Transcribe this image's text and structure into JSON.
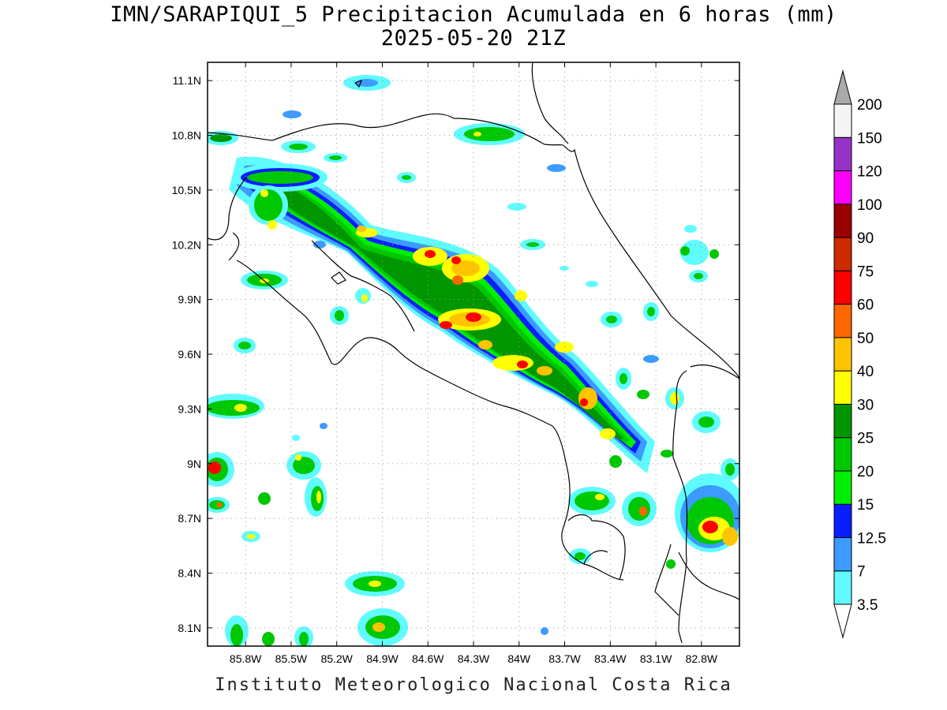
{
  "title_line1": "IMN/SARAPIQUI_5 Precipitacion Acumulada en 6 horas (mm)",
  "title_line2": "2025-05-20 21Z",
  "footer": "Instituto Meteorologico Nacional Costa Rica",
  "map": {
    "lon_range": [
      -86.05,
      -82.55
    ],
    "lat_range": [
      8.0,
      11.2
    ],
    "lon_ticks": [
      "85.8W",
      "85.5W",
      "85.2W",
      "84.9W",
      "84.6W",
      "84.3W",
      "84W",
      "83.7W",
      "83.4W",
      "83.1W",
      "82.8W"
    ],
    "lat_ticks": [
      "11.1N",
      "10.8N",
      "10.5N",
      "10.2N",
      "9.9N",
      "9.6N",
      "9.3N",
      "9N",
      "8.7N",
      "8.4N",
      "8.1N"
    ],
    "grid": "dotted"
  },
  "colorbar": {
    "levels": [
      "3.5",
      "7",
      "12.5",
      "15",
      "20",
      "25",
      "30",
      "40",
      "50",
      "60",
      "75",
      "90",
      "100",
      "120",
      "150",
      "200"
    ],
    "colors": [
      "#5ffbff",
      "#3b9bff",
      "#0a1eff",
      "#00ee00",
      "#00c800",
      "#009600",
      "#ffff00",
      "#ffc400",
      "#ff6600",
      "#ff0000",
      "#cc2a00",
      "#990000",
      "#ff00ff",
      "#9632c8",
      "#f4f4f4",
      "#aaaaaa"
    ]
  }
}
